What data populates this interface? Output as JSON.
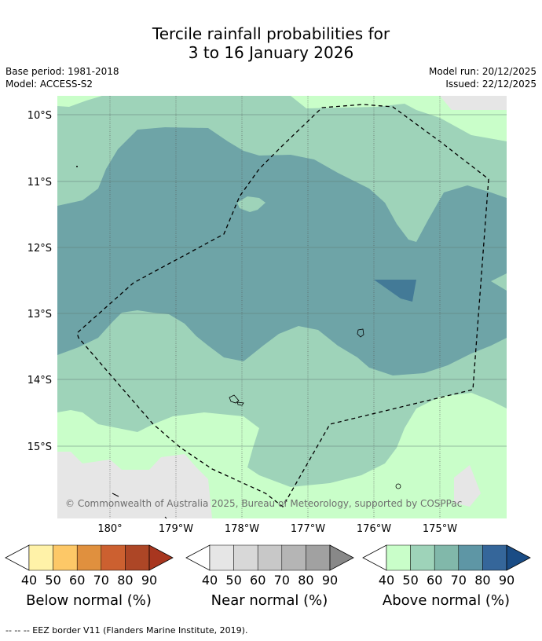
{
  "title": {
    "line1": "Tercile rainfall probabilities for",
    "line2": "3 to 16 January 2026"
  },
  "meta": {
    "base_period": "Base period: 1981-2018",
    "model": "Model: ACCESS-S2",
    "model_run": "Model run: 20/12/2025",
    "issued": "Issued: 22/12/2025"
  },
  "map": {
    "lat_labels": [
      "10°S",
      "11°S",
      "12°S",
      "13°S",
      "14°S",
      "15°S"
    ],
    "lon_labels": [
      "180°",
      "179°W",
      "178°W",
      "177°W",
      "176°W",
      "175°W"
    ],
    "attribution": "© Commonwealth of Australia 2025, Bureau of Meteorology, supported by COSPPac"
  },
  "colorbars": [
    {
      "title": "Below normal (%)",
      "ticks": [
        "40",
        "50",
        "60",
        "70",
        "80",
        "90"
      ],
      "colors": [
        "#fff2a8",
        "#fdc867",
        "#e0903e",
        "#cc6030",
        "#ad4626",
        "#a8361f"
      ]
    },
    {
      "title": "Near normal (%)",
      "ticks": [
        "40",
        "50",
        "60",
        "70",
        "80",
        "90"
      ],
      "colors": [
        "#e6e6e6",
        "#d8d8d8",
        "#c8c8c8",
        "#b5b5b5",
        "#a1a1a1",
        "#888888"
      ]
    },
    {
      "title": "Above normal (%)",
      "ticks": [
        "40",
        "50",
        "60",
        "70",
        "80",
        "90"
      ],
      "colors": [
        "#c9fec9",
        "#9ed3b9",
        "#81b8aa",
        "#5e96a5",
        "#35669a",
        "#1a4c85"
      ]
    }
  ],
  "footer": "--  --  -- EEZ border V11 (Flanders Marine Institute, 2019)."
}
